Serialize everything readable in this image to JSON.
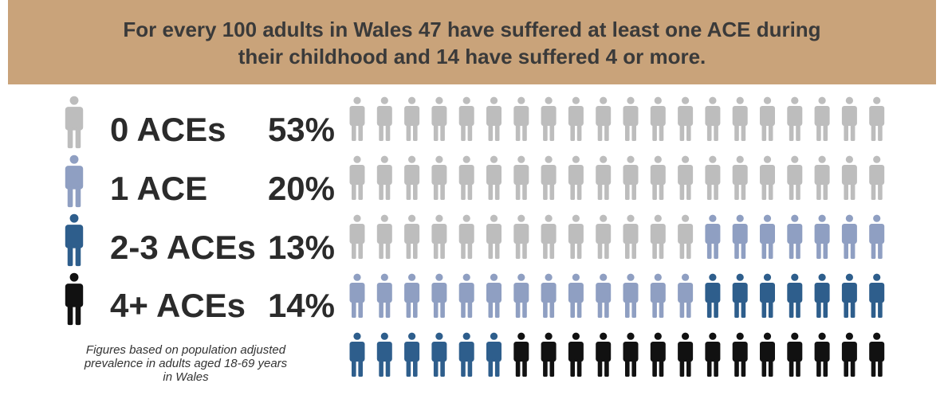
{
  "banner": {
    "line1": "For every 100 adults in Wales 47 have suffered at least one ACE during",
    "line2": "their childhood and 14  have suffered 4 or more."
  },
  "footnote": {
    "line1": "Figures based on population adjusted",
    "line2": "prevalence in adults aged 18-69 years",
    "line3": "in Wales"
  },
  "colors": {
    "banner": "#c9a37a",
    "zero": "#bdbdbd",
    "one": "#8f9fc2",
    "two_three": "#2e5e8c",
    "four_plus": "#111111"
  },
  "chart_data": {
    "type": "pictogram",
    "total": 100,
    "grid": {
      "rows": 5,
      "columns": 20
    },
    "categories": [
      {
        "key": "zero",
        "label": "0 ACEs",
        "percent_label": "53%",
        "value": 53,
        "color": "#bdbdbd"
      },
      {
        "key": "one",
        "label": "1 ACE",
        "percent_label": "20%",
        "value": 20,
        "color": "#8f9fc2"
      },
      {
        "key": "two_three",
        "label": "2-3 ACEs",
        "percent_label": "13%",
        "value": 13,
        "color": "#2e5e8c"
      },
      {
        "key": "four_plus",
        "label": "4+ ACEs",
        "percent_label": "14%",
        "value": 14,
        "color": "#111111"
      }
    ]
  }
}
